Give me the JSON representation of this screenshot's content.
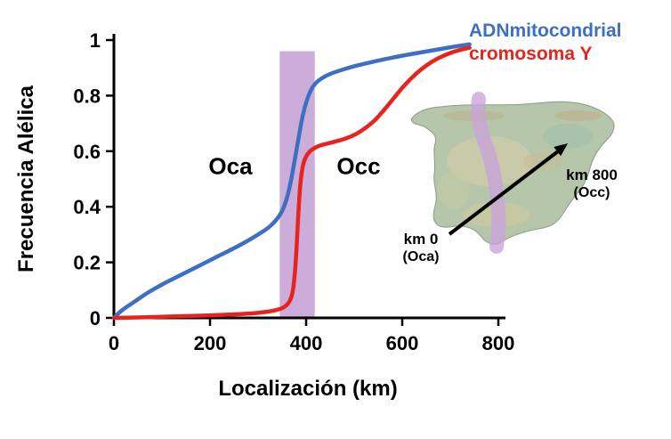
{
  "figure": {
    "background": "#ffffff"
  },
  "chart_data": {
    "type": "line",
    "title": "",
    "xlabel": "Localización (km)",
    "ylabel": "Frecuencia Alélica",
    "xlim": [
      0,
      800
    ],
    "ylim": [
      0,
      1
    ],
    "grid": false,
    "legend_position": "top-right",
    "xticks": {
      "values": [
        0,
        200,
        400,
        600,
        800
      ],
      "labels": [
        "0",
        "200",
        "400",
        "600",
        "800"
      ]
    },
    "yticks": {
      "values": [
        0,
        0.2,
        0.4,
        0.6,
        0.8,
        1
      ],
      "labels": [
        "0",
        "0.2",
        "0.4",
        "0.6",
        "0.8",
        "1"
      ]
    },
    "series": [
      {
        "name": "ADNmitocondrial",
        "color": "#3d6fc2",
        "points": [
          [
            0,
            0
          ],
          [
            15,
            0.025
          ],
          [
            40,
            0.055
          ],
          [
            70,
            0.09
          ],
          [
            100,
            0.12
          ],
          [
            140,
            0.155
          ],
          [
            180,
            0.19
          ],
          [
            220,
            0.225
          ],
          [
            260,
            0.26
          ],
          [
            300,
            0.3
          ],
          [
            325,
            0.33
          ],
          [
            345,
            0.37
          ],
          [
            358,
            0.42
          ],
          [
            368,
            0.49
          ],
          [
            376,
            0.565
          ],
          [
            384,
            0.645
          ],
          [
            392,
            0.72
          ],
          [
            400,
            0.775
          ],
          [
            410,
            0.82
          ],
          [
            420,
            0.845
          ],
          [
            432,
            0.862
          ],
          [
            450,
            0.878
          ],
          [
            475,
            0.893
          ],
          [
            505,
            0.908
          ],
          [
            540,
            0.922
          ],
          [
            580,
            0.937
          ],
          [
            620,
            0.95
          ],
          [
            660,
            0.962
          ],
          [
            700,
            0.974
          ],
          [
            740,
            0.985
          ]
        ]
      },
      {
        "name": "cromosoma Y",
        "color": "#e8231d",
        "points": [
          [
            0,
            0
          ],
          [
            60,
            0.002
          ],
          [
            120,
            0.005
          ],
          [
            180,
            0.008
          ],
          [
            240,
            0.012
          ],
          [
            285,
            0.016
          ],
          [
            315,
            0.021
          ],
          [
            335,
            0.027
          ],
          [
            350,
            0.035
          ],
          [
            360,
            0.047
          ],
          [
            367,
            0.065
          ],
          [
            372,
            0.095
          ],
          [
            376,
            0.15
          ],
          [
            380,
            0.25
          ],
          [
            384,
            0.38
          ],
          [
            388,
            0.48
          ],
          [
            393,
            0.545
          ],
          [
            399,
            0.578
          ],
          [
            407,
            0.598
          ],
          [
            418,
            0.612
          ],
          [
            432,
            0.622
          ],
          [
            450,
            0.63
          ],
          [
            468,
            0.638
          ],
          [
            486,
            0.648
          ],
          [
            504,
            0.662
          ],
          [
            522,
            0.682
          ],
          [
            542,
            0.71
          ],
          [
            562,
            0.748
          ],
          [
            582,
            0.79
          ],
          [
            602,
            0.832
          ],
          [
            622,
            0.868
          ],
          [
            642,
            0.898
          ],
          [
            662,
            0.922
          ],
          [
            684,
            0.942
          ],
          [
            706,
            0.957
          ],
          [
            724,
            0.966
          ],
          [
            740,
            0.972
          ]
        ]
      }
    ],
    "highlight_band": {
      "x0": 345,
      "x1": 418,
      "y0": 0,
      "y1": 0.96,
      "color": "#c6a4d5",
      "opacity": 0.9
    },
    "annotations": [
      {
        "label": "Oca",
        "x": 240,
        "y": 0.54
      },
      {
        "label": "Occ",
        "x": 505,
        "y": 0.54
      }
    ]
  },
  "inset_map": {
    "region": "iberian-peninsula",
    "labels": {
      "start_km": "km 0",
      "start_zone": "(Oca)",
      "end_km": "km 800",
      "end_zone": "(Occ)"
    },
    "band_color": "#c9a3da",
    "arrow_color": "#000000"
  }
}
